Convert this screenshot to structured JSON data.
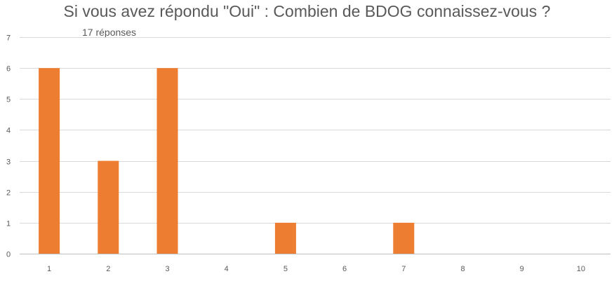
{
  "chart_data": {
    "type": "bar",
    "title": "Si vous avez répondu \"Oui\" : Combien de BDOG connaissez-vous ?",
    "subtitle": "17 réponses",
    "xlabel": "",
    "ylabel": "",
    "categories": [
      "1",
      "2",
      "3",
      "4",
      "5",
      "6",
      "7",
      "8",
      "9",
      "10"
    ],
    "values": [
      6,
      3,
      6,
      0,
      1,
      0,
      1,
      0,
      0,
      0
    ],
    "ylim": [
      0,
      7
    ],
    "yticks": [
      "0",
      "1",
      "2",
      "3",
      "4",
      "5",
      "6",
      "7"
    ],
    "grid": true,
    "legend": "none",
    "colors": {
      "bar": "#ED7D31",
      "grid": "#D9D9D9",
      "text": "#595959"
    }
  }
}
